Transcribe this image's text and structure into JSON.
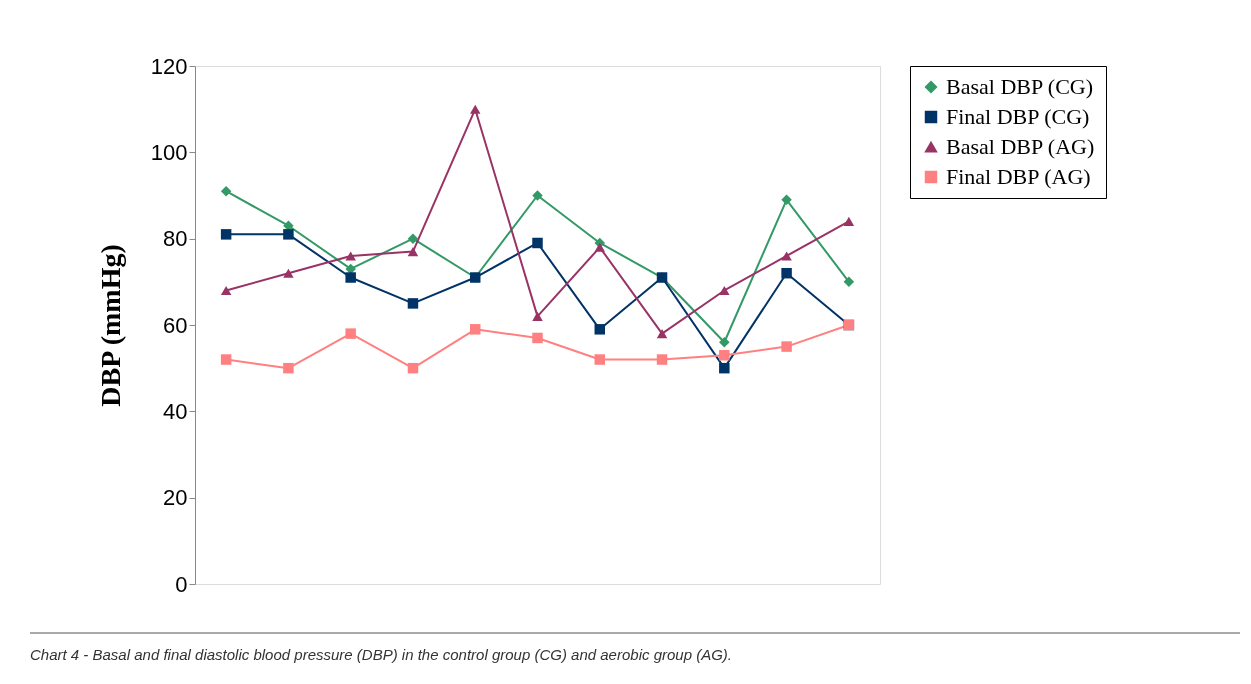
{
  "chart_data": {
    "type": "line",
    "ylabel": "DBP (mmHg)",
    "categories": [
      null,
      null,
      null,
      null,
      null,
      null,
      null,
      null,
      null,
      null,
      null
    ],
    "ylim": [
      0,
      120
    ],
    "yticks": [
      0,
      20,
      40,
      60,
      80,
      100,
      120
    ],
    "grid": false,
    "legend": "right",
    "series": [
      {
        "name": "Basal DBP (CG)",
        "color": "#339966",
        "marker": "diamond",
        "values": [
          91,
          83,
          73,
          80,
          71,
          90,
          79,
          71,
          56,
          89,
          70
        ]
      },
      {
        "name": "Final DBP (CG)",
        "color": "#003366",
        "marker": "square",
        "values": [
          81,
          81,
          71,
          65,
          71,
          79,
          59,
          71,
          50,
          72,
          60
        ]
      },
      {
        "name": "Basal DBP (AG)",
        "color": "#993366",
        "marker": "triangle",
        "values": [
          68,
          72,
          76,
          77,
          110,
          62,
          78,
          58,
          68,
          76,
          84
        ]
      },
      {
        "name": "Final DBP (AG)",
        "color": "#ff8080",
        "marker": "square",
        "values": [
          52,
          50,
          58,
          50,
          59,
          57,
          52,
          52,
          53,
          55,
          60
        ]
      }
    ],
    "annotations": [
      "Chart 4 - Basal and final diastolic blood pressure (DBP) in the control group (CG) and aerobic group (AG)."
    ]
  }
}
